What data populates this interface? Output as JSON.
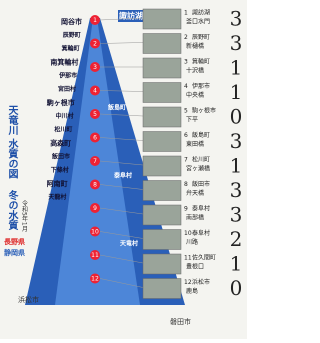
{
  "top_label": "諏訪湖",
  "title": "天竜川 水質の図",
  "subtitle": "冬の水質",
  "date": "令和5年1月",
  "places": [
    "岡谷市",
    "辰野町",
    "箕輪町",
    "南箕輪村",
    "伊那市",
    "宮田村",
    "駒ヶ根市",
    "中川村",
    "松川町",
    "高森町",
    "飯田市",
    "下條村",
    "阿南町",
    "天龍村"
  ],
  "river_places": [
    "飯島町",
    "泰阜村",
    "天竜村"
  ],
  "prefectures": [
    "長野県",
    "静岡県"
  ],
  "bottom_labels": [
    "浜松市",
    "磐田市"
  ],
  "sites": [
    {
      "number": 1,
      "name": "諏訪湖",
      "place": "釜口水門",
      "score": 3
    },
    {
      "number": 2,
      "name": "辰野町",
      "place": "新樋橋",
      "score": 3
    },
    {
      "number": 3,
      "name": "箕輪町",
      "place": "十沢橋",
      "score": 1
    },
    {
      "number": 4,
      "name": "伊那市",
      "place": "中央橋",
      "score": 1
    },
    {
      "number": 5,
      "name": "駒ヶ根市",
      "place": "下平",
      "score": 0
    },
    {
      "number": 6,
      "name": "飯島町",
      "place": "東田橋",
      "score": 3
    },
    {
      "number": 7,
      "name": "松川町",
      "place": "宮ヶ瀬橋",
      "score": 1
    },
    {
      "number": 8,
      "name": "飯田市",
      "place": "弁天橋",
      "score": 3
    },
    {
      "number": 9,
      "name": "泰阜村",
      "place": "南部橋",
      "score": 3
    },
    {
      "number": 10,
      "name": "泰阜村",
      "place": "川路",
      "score": 2
    },
    {
      "number": 11,
      "name": "佐久間町",
      "place": "豊根口",
      "score": 1
    },
    {
      "number": 12,
      "name": "浜松市",
      "place": "鹿島",
      "score": 0
    }
  ]
}
